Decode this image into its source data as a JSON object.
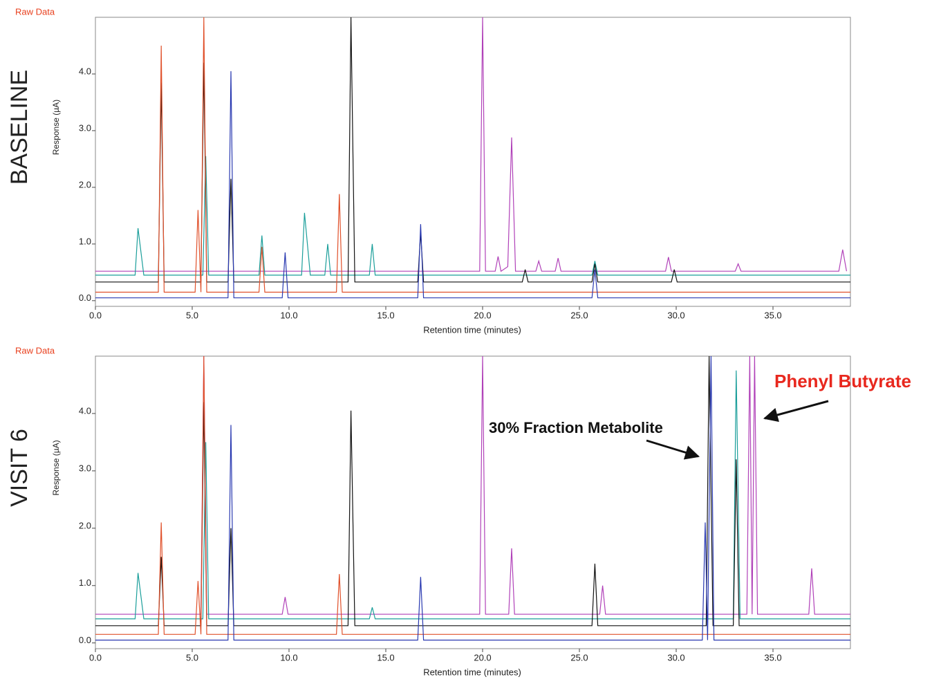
{
  "chart_data": [
    {
      "type": "line",
      "panel_label": "BASELINE",
      "corner_label": "Raw Data",
      "xlabel": "Retention time (minutes)",
      "ylabel": "Response (µA)",
      "xlim": [
        0,
        39
      ],
      "ylim": [
        -0.1,
        5.0
      ],
      "xticks": [
        {
          "value": 0,
          "label": "0.0"
        },
        {
          "value": 5,
          "label": "5.0"
        },
        {
          "value": 10,
          "label": "10.0"
        },
        {
          "value": 15,
          "label": "15.0"
        },
        {
          "value": 20,
          "label": "20.0"
        },
        {
          "value": 25,
          "label": "25.0"
        },
        {
          "value": 30,
          "label": "30.0"
        },
        {
          "value": 35,
          "label": "35.0"
        }
      ],
      "yticks": [
        {
          "value": 0,
          "label": "0.0"
        },
        {
          "value": 1,
          "label": "1.0"
        },
        {
          "value": 2,
          "label": "2.0"
        },
        {
          "value": 3,
          "label": "3.0"
        },
        {
          "value": 4,
          "label": "4.0"
        }
      ],
      "series": [
        {
          "color": "#b040b8",
          "x": [
            0,
            19.85,
            20.0,
            20.15,
            20.65,
            20.8,
            20.95,
            21.3,
            21.5,
            21.7,
            22.75,
            22.9,
            23.05,
            23.75,
            23.9,
            24.05,
            29.45,
            29.6,
            29.75,
            33.05,
            33.2,
            33.35,
            38.4,
            38.6,
            38.8
          ],
          "values": [
            0.52,
            0.52,
            5.0,
            0.52,
            0.52,
            0.78,
            0.52,
            0.6,
            2.88,
            0.52,
            0.52,
            0.7,
            0.52,
            0.52,
            0.75,
            0.52,
            0.52,
            0.77,
            0.52,
            0.52,
            0.65,
            0.52,
            0.52,
            0.9,
            0.52
          ]
        },
        {
          "color": "#1a9e9a",
          "x": [
            0,
            2.05,
            2.2,
            2.5,
            5.55,
            5.7,
            5.85,
            8.45,
            8.6,
            8.75,
            10.65,
            10.8,
            11.1,
            11.85,
            12.0,
            12.15,
            14.15,
            14.3,
            14.45,
            25.65,
            25.8,
            25.95,
            39
          ],
          "values": [
            0.45,
            0.45,
            1.28,
            0.45,
            0.45,
            2.55,
            0.45,
            0.45,
            1.15,
            0.45,
            0.45,
            1.55,
            0.45,
            0.45,
            1.0,
            0.45,
            0.45,
            1.0,
            0.45,
            0.45,
            0.7,
            0.45,
            0.45
          ]
        },
        {
          "color": "#111111",
          "x": [
            0,
            3.25,
            3.4,
            3.55,
            5.45,
            5.6,
            5.75,
            6.85,
            7.0,
            7.15,
            13.05,
            13.2,
            13.4,
            16.65,
            16.8,
            16.95,
            22.05,
            22.2,
            22.35,
            25.65,
            25.8,
            25.95,
            29.75,
            29.9,
            30.05,
            39
          ],
          "values": [
            0.33,
            0.33,
            3.85,
            0.33,
            0.33,
            4.2,
            0.33,
            0.33,
            2.15,
            0.33,
            0.33,
            5.0,
            0.33,
            0.33,
            1.2,
            0.33,
            0.33,
            0.55,
            0.33,
            0.33,
            0.65,
            0.33,
            0.33,
            0.55,
            0.33,
            0.33
          ]
        },
        {
          "color": "#e0502a",
          "x": [
            0,
            3.25,
            3.4,
            3.55,
            5.15,
            5.3,
            5.45,
            5.6,
            5.75,
            8.45,
            8.6,
            8.75,
            12.45,
            12.6,
            12.75,
            39
          ],
          "values": [
            0.15,
            0.15,
            4.5,
            0.15,
            0.15,
            1.6,
            0.15,
            5.0,
            0.15,
            0.15,
            0.95,
            0.15,
            0.15,
            1.88,
            0.15,
            0.15
          ]
        },
        {
          "color": "#2838b0",
          "x": [
            0,
            6.85,
            7.0,
            7.15,
            9.65,
            9.8,
            9.95,
            16.65,
            16.8,
            16.95,
            25.65,
            25.8,
            25.95,
            39
          ],
          "values": [
            0.05,
            0.05,
            4.05,
            0.05,
            0.05,
            0.85,
            0.05,
            0.05,
            1.35,
            0.05,
            0.05,
            0.55,
            0.05,
            0.05
          ]
        }
      ]
    },
    {
      "type": "line",
      "panel_label": "VISIT 6",
      "corner_label": "Raw Data",
      "xlabel": "Retention time (minutes)",
      "ylabel": "Response (µA)",
      "xlim": [
        0,
        39
      ],
      "ylim": [
        -0.1,
        5.0
      ],
      "xticks": [
        {
          "value": 0,
          "label": "0.0"
        },
        {
          "value": 5,
          "label": "5.0"
        },
        {
          "value": 10,
          "label": "10.0"
        },
        {
          "value": 15,
          "label": "15.0"
        },
        {
          "value": 20,
          "label": "20.0"
        },
        {
          "value": 25,
          "label": "25.0"
        },
        {
          "value": 30,
          "label": "30.0"
        },
        {
          "value": 35,
          "label": "35.0"
        }
      ],
      "yticks": [
        {
          "value": 0,
          "label": "0.0"
        },
        {
          "value": 1,
          "label": "1.0"
        },
        {
          "value": 2,
          "label": "2.0"
        },
        {
          "value": 3,
          "label": "3.0"
        },
        {
          "value": 4,
          "label": "4.0"
        }
      ],
      "annotations": [
        {
          "text": "30% Fraction Metabolite"
        },
        {
          "text": "Phenyl Butyrate"
        }
      ],
      "series": [
        {
          "color": "#b040b8",
          "x": [
            0,
            5.45,
            5.6,
            5.75,
            9.65,
            9.8,
            9.95,
            19.85,
            20.0,
            20.15,
            21.35,
            21.5,
            21.65,
            26.05,
            26.2,
            26.35,
            33.65,
            33.8,
            33.92,
            34.05,
            34.2,
            36.85,
            37.0,
            37.15,
            39
          ],
          "values": [
            0.5,
            0.5,
            5.0,
            0.5,
            0.5,
            0.8,
            0.5,
            0.5,
            5.0,
            0.5,
            0.5,
            1.65,
            0.5,
            0.5,
            1.0,
            0.5,
            0.5,
            5.0,
            0.5,
            5.0,
            0.5,
            0.5,
            1.3,
            0.5,
            0.5
          ]
        },
        {
          "color": "#1a9e9a",
          "x": [
            0,
            2.05,
            2.2,
            2.5,
            5.55,
            5.7,
            5.85,
            14.15,
            14.3,
            14.45,
            32.95,
            33.1,
            33.3,
            39
          ],
          "values": [
            0.42,
            0.42,
            1.22,
            0.42,
            0.42,
            3.5,
            0.42,
            0.42,
            0.62,
            0.42,
            0.42,
            4.75,
            0.42,
            0.42
          ]
        },
        {
          "color": "#111111",
          "x": [
            0,
            3.25,
            3.4,
            3.55,
            5.45,
            5.6,
            5.75,
            6.85,
            7.0,
            7.15,
            13.05,
            13.2,
            13.4,
            25.65,
            25.8,
            25.95,
            31.55,
            31.7,
            31.9,
            32.95,
            33.1,
            33.25,
            39
          ],
          "values": [
            0.3,
            0.3,
            1.5,
            0.3,
            0.3,
            4.2,
            0.3,
            0.3,
            2.0,
            0.3,
            0.3,
            4.05,
            0.3,
            0.3,
            1.38,
            0.3,
            0.3,
            5.0,
            0.3,
            0.3,
            3.2,
            0.3,
            0.3
          ]
        },
        {
          "color": "#e0502a",
          "x": [
            0,
            3.25,
            3.4,
            3.55,
            5.15,
            5.3,
            5.45,
            5.6,
            5.75,
            12.45,
            12.6,
            12.75,
            39
          ],
          "values": [
            0.15,
            0.15,
            2.1,
            0.15,
            0.15,
            1.08,
            0.15,
            5.0,
            0.15,
            0.15,
            1.2,
            0.15,
            0.15
          ]
        },
        {
          "color": "#2838b0",
          "x": [
            0,
            6.85,
            7.0,
            7.15,
            16.65,
            16.8,
            16.95,
            31.35,
            31.5,
            31.62,
            31.8,
            31.95,
            39
          ],
          "values": [
            0.05,
            0.05,
            3.8,
            0.05,
            0.05,
            1.15,
            0.05,
            0.05,
            2.1,
            0.05,
            5.0,
            0.05,
            0.05
          ]
        }
      ]
    }
  ]
}
